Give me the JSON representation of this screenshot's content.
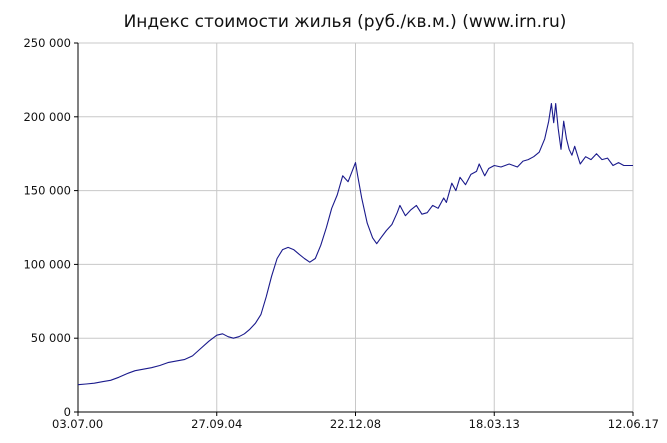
{
  "chart_data": {
    "type": "line",
    "title": "Индекс стоимости жилья (руб./кв.м.) (www.irn.ru)",
    "xlabel": "",
    "ylabel": "",
    "ylim": [
      0,
      250000
    ],
    "y_ticks": [
      {
        "value": 0,
        "label": "0"
      },
      {
        "value": 50000,
        "label": "50 000"
      },
      {
        "value": 100000,
        "label": "100 000"
      },
      {
        "value": 150000,
        "label": "150 000"
      },
      {
        "value": 200000,
        "label": "200 000"
      },
      {
        "value": 250000,
        "label": "250 000"
      }
    ],
    "x_range": [
      "2000-07-03",
      "2017-06-12"
    ],
    "x_ticks": [
      {
        "date": "2000-07-03",
        "label": "03.07.00"
      },
      {
        "date": "2004-09-27",
        "label": "27.09.04"
      },
      {
        "date": "2008-12-22",
        "label": "22.12.08"
      },
      {
        "date": "2013-03-18",
        "label": "18.03.13"
      },
      {
        "date": "2017-06-12",
        "label": "12.06.17"
      }
    ],
    "grid": true,
    "series": [
      {
        "color": "#1a1a8c",
        "points": [
          [
            "2000-07-03",
            18500
          ],
          [
            "2000-10-01",
            19000
          ],
          [
            "2001-01-01",
            19500
          ],
          [
            "2001-04-01",
            20500
          ],
          [
            "2001-07-01",
            21500
          ],
          [
            "2001-10-01",
            23500
          ],
          [
            "2002-01-01",
            26000
          ],
          [
            "2002-04-01",
            28000
          ],
          [
            "2002-07-01",
            29000
          ],
          [
            "2002-10-01",
            30000
          ],
          [
            "2003-01-01",
            31500
          ],
          [
            "2003-04-01",
            33500
          ],
          [
            "2003-07-01",
            34500
          ],
          [
            "2003-10-01",
            35500
          ],
          [
            "2004-01-01",
            38000
          ],
          [
            "2004-04-01",
            43000
          ],
          [
            "2004-07-01",
            48000
          ],
          [
            "2004-09-27",
            52000
          ],
          [
            "2004-12-01",
            53000
          ],
          [
            "2005-02-01",
            51000
          ],
          [
            "2005-04-01",
            50000
          ],
          [
            "2005-06-01",
            51000
          ],
          [
            "2005-08-01",
            53000
          ],
          [
            "2005-10-01",
            56000
          ],
          [
            "2005-12-01",
            60000
          ],
          [
            "2006-02-01",
            66000
          ],
          [
            "2006-04-01",
            78000
          ],
          [
            "2006-06-01",
            92000
          ],
          [
            "2006-08-01",
            104000
          ],
          [
            "2006-10-01",
            110000
          ],
          [
            "2006-12-01",
            111500
          ],
          [
            "2007-02-01",
            110000
          ],
          [
            "2007-04-01",
            107000
          ],
          [
            "2007-06-01",
            104000
          ],
          [
            "2007-08-01",
            101500
          ],
          [
            "2007-10-01",
            104000
          ],
          [
            "2007-12-01",
            113000
          ],
          [
            "2008-02-01",
            125000
          ],
          [
            "2008-04-01",
            138000
          ],
          [
            "2008-06-01",
            147000
          ],
          [
            "2008-08-01",
            160000
          ],
          [
            "2008-10-01",
            156000
          ],
          [
            "2008-12-22",
            169000
          ],
          [
            "2009-01-15",
            160000
          ],
          [
            "2009-03-01",
            145000
          ],
          [
            "2009-05-01",
            128000
          ],
          [
            "2009-07-01",
            118000
          ],
          [
            "2009-08-15",
            114000
          ],
          [
            "2009-10-01",
            118000
          ],
          [
            "2009-12-01",
            123000
          ],
          [
            "2010-02-01",
            127000
          ],
          [
            "2010-04-01",
            135000
          ],
          [
            "2010-05-01",
            140000
          ],
          [
            "2010-07-01",
            133000
          ],
          [
            "2010-09-01",
            137000
          ],
          [
            "2010-11-01",
            140000
          ],
          [
            "2011-01-01",
            134000
          ],
          [
            "2011-03-01",
            135000
          ],
          [
            "2011-05-01",
            140000
          ],
          [
            "2011-07-01",
            138000
          ],
          [
            "2011-09-01",
            145000
          ],
          [
            "2011-10-01",
            142000
          ],
          [
            "2011-12-01",
            155000
          ],
          [
            "2012-01-15",
            150000
          ],
          [
            "2012-03-01",
            159000
          ],
          [
            "2012-05-01",
            154000
          ],
          [
            "2012-07-01",
            161000
          ],
          [
            "2012-09-01",
            163000
          ],
          [
            "2012-10-01",
            168000
          ],
          [
            "2012-12-01",
            160000
          ],
          [
            "2013-01-15",
            165000
          ],
          [
            "2013-03-18",
            167000
          ],
          [
            "2013-06-01",
            166000
          ],
          [
            "2013-09-01",
            168000
          ],
          [
            "2013-12-01",
            166000
          ],
          [
            "2014-02-01",
            170000
          ],
          [
            "2014-04-01",
            171000
          ],
          [
            "2014-06-01",
            173000
          ],
          [
            "2014-08-01",
            176000
          ],
          [
            "2014-10-01",
            185000
          ],
          [
            "2014-11-15",
            197000
          ],
          [
            "2014-12-15",
            209000
          ],
          [
            "2015-01-10",
            196000
          ],
          [
            "2015-02-01",
            209000
          ],
          [
            "2015-03-01",
            192000
          ],
          [
            "2015-04-01",
            178000
          ],
          [
            "2015-05-01",
            197000
          ],
          [
            "2015-06-01",
            185000
          ],
          [
            "2015-07-01",
            178000
          ],
          [
            "2015-08-01",
            174000
          ],
          [
            "2015-09-01",
            180000
          ],
          [
            "2015-11-01",
            168000
          ],
          [
            "2016-01-01",
            173000
          ],
          [
            "2016-03-01",
            171000
          ],
          [
            "2016-05-01",
            175000
          ],
          [
            "2016-07-01",
            171000
          ],
          [
            "2016-09-01",
            172000
          ],
          [
            "2016-11-01",
            167000
          ],
          [
            "2017-01-01",
            169000
          ],
          [
            "2017-03-01",
            167000
          ],
          [
            "2017-06-12",
            167000
          ]
        ]
      }
    ]
  }
}
